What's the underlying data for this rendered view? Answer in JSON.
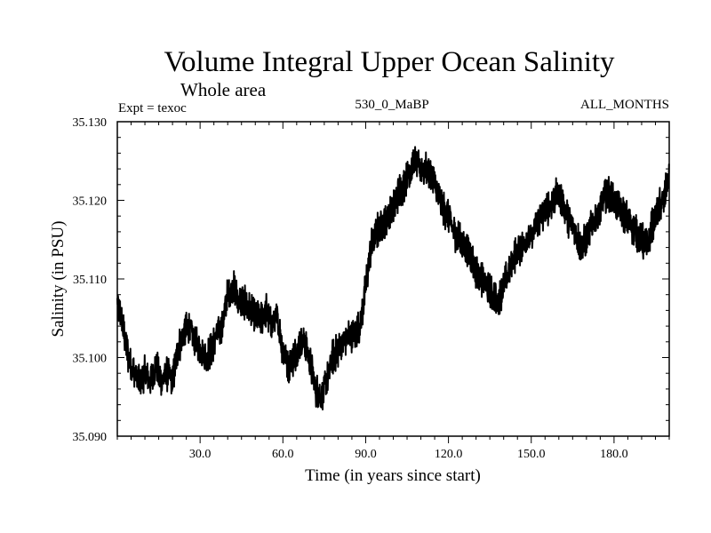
{
  "chart_data": {
    "type": "line",
    "title": "Volume Integral Upper Ocean Salinity",
    "subtitle": "Whole area",
    "left_label": "Expt = texoc",
    "center_label": "530_0_MaBP",
    "right_label": "ALL_MONTHS",
    "xlabel": "Time (in years since start)",
    "ylabel": "Salinity (in PSU)",
    "xlim": [
      0,
      200
    ],
    "ylim": [
      35.09,
      35.13
    ],
    "x_ticks": [
      30,
      60,
      90,
      120,
      150,
      180
    ],
    "x_tick_labels": [
      "30.0",
      "60.0",
      "90.0",
      "120.0",
      "150.0",
      "180.0"
    ],
    "y_ticks": [
      35.09,
      35.1,
      35.11,
      35.12,
      35.13
    ],
    "y_tick_labels": [
      "35.090",
      "35.100",
      "35.110",
      "35.120",
      "35.130"
    ],
    "line_color": "#000000",
    "series": [
      {
        "name": "Salinity",
        "x": [
          0,
          2,
          4,
          6,
          8,
          10,
          12,
          14,
          16,
          18,
          20,
          22,
          24,
          26,
          28,
          30,
          32,
          34,
          36,
          38,
          40,
          42,
          44,
          46,
          48,
          50,
          52,
          54,
          56,
          58,
          60,
          62,
          64,
          66,
          68,
          70,
          72,
          74,
          76,
          78,
          80,
          82,
          84,
          86,
          88,
          90,
          92,
          94,
          96,
          98,
          100,
          102,
          104,
          106,
          108,
          110,
          112,
          114,
          116,
          118,
          120,
          122,
          124,
          126,
          128,
          130,
          132,
          134,
          136,
          138,
          140,
          142,
          144,
          146,
          148,
          150,
          152,
          154,
          156,
          158,
          160,
          162,
          164,
          166,
          168,
          170,
          172,
          174,
          176,
          178,
          180,
          182,
          184,
          186,
          188,
          190,
          192,
          194,
          196,
          198,
          200
        ],
        "values": [
          35.107,
          35.104,
          35.1,
          35.098,
          35.097,
          35.098,
          35.097,
          35.099,
          35.097,
          35.098,
          35.097,
          35.101,
          35.103,
          35.104,
          35.102,
          35.101,
          35.1,
          35.101,
          35.103,
          35.104,
          35.108,
          35.109,
          35.107,
          35.107,
          35.106,
          35.105,
          35.105,
          35.106,
          35.104,
          35.105,
          35.101,
          35.099,
          35.1,
          35.102,
          35.102,
          35.099,
          35.096,
          35.095,
          35.097,
          35.1,
          35.101,
          35.102,
          35.103,
          35.103,
          35.104,
          35.109,
          35.114,
          35.116,
          35.117,
          35.118,
          35.119,
          35.121,
          35.122,
          35.124,
          35.125,
          35.124,
          35.124,
          35.123,
          35.121,
          35.119,
          35.118,
          35.116,
          35.115,
          35.114,
          35.113,
          35.111,
          35.11,
          35.109,
          35.108,
          35.107,
          35.109,
          35.111,
          35.113,
          35.114,
          35.115,
          35.115,
          35.117,
          35.118,
          35.119,
          35.12,
          35.121,
          35.119,
          35.117,
          35.116,
          35.114,
          35.115,
          35.117,
          35.118,
          35.12,
          35.121,
          35.12,
          35.119,
          35.118,
          35.117,
          35.116,
          35.115,
          35.114,
          35.117,
          35.119,
          35.12,
          35.123
        ]
      }
    ]
  }
}
